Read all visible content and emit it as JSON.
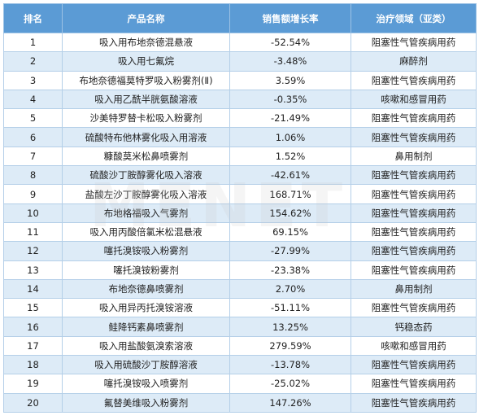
{
  "table": {
    "headers": [
      "排名",
      "产品名称",
      "销售额增长率",
      "治疗领域（亚类）"
    ],
    "rows": [
      {
        "rank": "1",
        "name": "吸入用布地奈德混悬液",
        "growth": "-52.54%",
        "area": "阻塞性气管疾病用药"
      },
      {
        "rank": "2",
        "name": "吸入用七氟烷",
        "growth": "-3.48%",
        "area": "麻醉剂"
      },
      {
        "rank": "3",
        "name": "布地奈德福莫特罗吸入粉雾剂(Ⅱ)",
        "growth": "3.59%",
        "area": "阻塞性气管疾病用药"
      },
      {
        "rank": "4",
        "name": "吸入用乙酰半胱氨酸溶液",
        "growth": "-0.35%",
        "area": "咳嗽和感冒用药"
      },
      {
        "rank": "5",
        "name": "沙美特罗替卡松吸入粉雾剂",
        "growth": "-21.49%",
        "area": "阻塞性气管疾病用药"
      },
      {
        "rank": "6",
        "name": "硫酸特布他林雾化吸入用溶液",
        "growth": "1.06%",
        "area": "阻塞性气管疾病用药"
      },
      {
        "rank": "7",
        "name": "糠酸莫米松鼻喷雾剂",
        "growth": "1.52%",
        "area": "鼻用制剂"
      },
      {
        "rank": "8",
        "name": "硫酸沙丁胺醇雾化吸入溶液",
        "growth": "-42.61%",
        "area": "阻塞性气管疾病用药"
      },
      {
        "rank": "9",
        "name": "盐酸左沙丁胺醇雾化吸入溶液",
        "growth": "168.71%",
        "area": "阻塞性气管疾病用药"
      },
      {
        "rank": "10",
        "name": "布地格福吸入气雾剂",
        "growth": "154.62%",
        "area": "阻塞性气管疾病用药"
      },
      {
        "rank": "11",
        "name": "吸入用丙酸倍氯米松混悬液",
        "growth": "69.15%",
        "area": "阻塞性气管疾病用药"
      },
      {
        "rank": "12",
        "name": "噻托溴铵吸入粉雾剂",
        "growth": "-27.99%",
        "area": "阻塞性气管疾病用药"
      },
      {
        "rank": "13",
        "name": "噻托溴铵粉雾剂",
        "growth": "-23.38%",
        "area": "阻塞性气管疾病用药"
      },
      {
        "rank": "14",
        "name": "布地奈德鼻喷雾剂",
        "growth": "2.70%",
        "area": "鼻用制剂"
      },
      {
        "rank": "15",
        "name": "吸入用异丙托溴铵溶液",
        "growth": "-51.11%",
        "area": "阻塞性气管疾病用药"
      },
      {
        "rank": "16",
        "name": "鲑降钙素鼻喷雾剂",
        "growth": "13.25%",
        "area": "钙稳态药"
      },
      {
        "rank": "17",
        "name": "吸入用盐酸氨溴索溶液",
        "growth": "279.59%",
        "area": "咳嗽和感冒用药"
      },
      {
        "rank": "18",
        "name": "吸入用硫酸沙丁胺醇溶液",
        "growth": "-13.78%",
        "area": "阻塞性气管疾病用药"
      },
      {
        "rank": "19",
        "name": "噻托溴铵吸入喷雾剂",
        "growth": "-25.02%",
        "area": "阻塞性气管疾病用药"
      },
      {
        "rank": "20",
        "name": "氟替美维吸入粉雾剂",
        "growth": "147.26%",
        "area": "阻塞性气管疾病用药"
      }
    ]
  },
  "watermark": "MENET"
}
